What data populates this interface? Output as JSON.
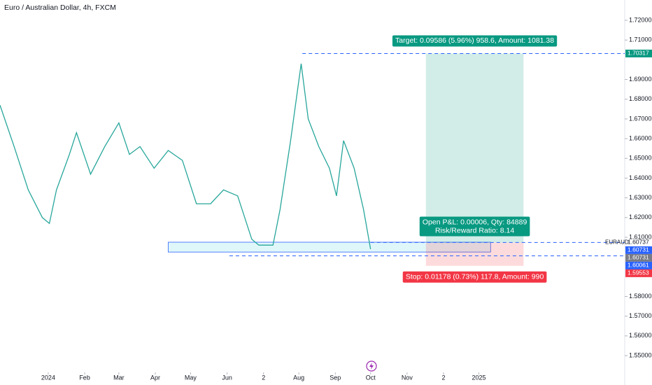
{
  "chart_data": {
    "type": "line",
    "title": "Euro / Australian Dollar, 4h, FXCM",
    "x": [
      -41,
      -29,
      -17,
      -5,
      1,
      7,
      18,
      24,
      36,
      48,
      60,
      69,
      78,
      90,
      102,
      114,
      126,
      138,
      149,
      161,
      173,
      179,
      191,
      197,
      206,
      215,
      221,
      230,
      239,
      245,
      251,
      260,
      268,
      274
    ],
    "series": [
      {
        "name": "EURAUD",
        "color": "#26a69a",
        "values": [
          1.677,
          1.656,
          1.634,
          1.62,
          1.617,
          1.634,
          1.652,
          1.663,
          1.642,
          1.656,
          1.668,
          1.652,
          1.656,
          1.645,
          1.654,
          1.649,
          1.627,
          1.627,
          1.634,
          1.631,
          1.609,
          1.606,
          1.606,
          1.624,
          1.659,
          1.698,
          1.67,
          1.656,
          1.645,
          1.631,
          1.659,
          1.645,
          1.624,
          1.604
        ]
      }
    ],
    "xlim": [
      -41,
      490
    ],
    "xticks": [
      {
        "value": 0,
        "label": "2024"
      },
      {
        "value": 31,
        "label": "Feb"
      },
      {
        "value": 60,
        "label": "Mar"
      },
      {
        "value": 91,
        "label": "Apr"
      },
      {
        "value": 121,
        "label": "May"
      },
      {
        "value": 152,
        "label": "Jun"
      },
      {
        "value": 183,
        "label": "2"
      },
      {
        "value": 213,
        "label": "Aug"
      },
      {
        "value": 244,
        "label": "Sep"
      },
      {
        "value": 274,
        "label": "Oct"
      },
      {
        "value": 305,
        "label": "Nov"
      },
      {
        "value": 336,
        "label": "2"
      },
      {
        "value": 366,
        "label": "2025"
      }
    ],
    "ylim": [
      1.5422,
      1.7303
    ],
    "yticks": [
      {
        "value": 1.72,
        "label": "1.72000"
      },
      {
        "value": 1.71,
        "label": "1.71000"
      },
      {
        "value": 1.69,
        "label": "1.69000"
      },
      {
        "value": 1.68,
        "label": "1.68000"
      },
      {
        "value": 1.67,
        "label": "1.67000"
      },
      {
        "value": 1.66,
        "label": "1.66000"
      },
      {
        "value": 1.65,
        "label": "1.65000"
      },
      {
        "value": 1.64,
        "label": "1.64000"
      },
      {
        "value": 1.63,
        "label": "1.63000"
      },
      {
        "value": 1.62,
        "label": "1.62000"
      },
      {
        "value": 1.61,
        "label": "1.61000"
      },
      {
        "value": 1.58,
        "label": "1.58000"
      },
      {
        "value": 1.57,
        "label": "1.57000"
      },
      {
        "value": 1.56,
        "label": "1.56000"
      },
      {
        "value": 1.55,
        "label": "1.55000"
      }
    ],
    "price_labels": [
      {
        "value": 1.70317,
        "label": "1.70317",
        "color": "#089981"
      },
      {
        "value": 1.60737,
        "label": "1.60737",
        "color": null
      },
      {
        "value": 1.60731,
        "label": "1.60731",
        "color": "#2962ff"
      },
      {
        "value": 1.60731,
        "label": "1.60731",
        "color": "#787b86"
      },
      {
        "value": 1.60061,
        "label": "1.60061",
        "color": "#2962ff"
      },
      {
        "value": 1.59553,
        "label": "1.59553",
        "color": "#f23645"
      }
    ],
    "levels": [
      {
        "value": 1.70317,
        "from": 216
      },
      {
        "value": 1.60737,
        "from": 274
      },
      {
        "value": 1.6006,
        "from": 154
      }
    ],
    "zone": {
      "low": 1.6025,
      "high": 1.6075,
      "start": 102,
      "end": 376
    },
    "position": {
      "entry": 1.60731,
      "target": 1.70317,
      "stop": 1.59553,
      "start": 321,
      "end": 404,
      "target_label": "Target: 0.09586 (5.96%) 958.6, Amount: 1081.38",
      "pnl_label": "Open P&L: 0.00006, Qty: 84889",
      "rr_label": "Risk/Reward Ratio: 8.14",
      "stop_label": "Stop: 0.01178 (0.73%) 117.8, Amount: 990"
    }
  }
}
